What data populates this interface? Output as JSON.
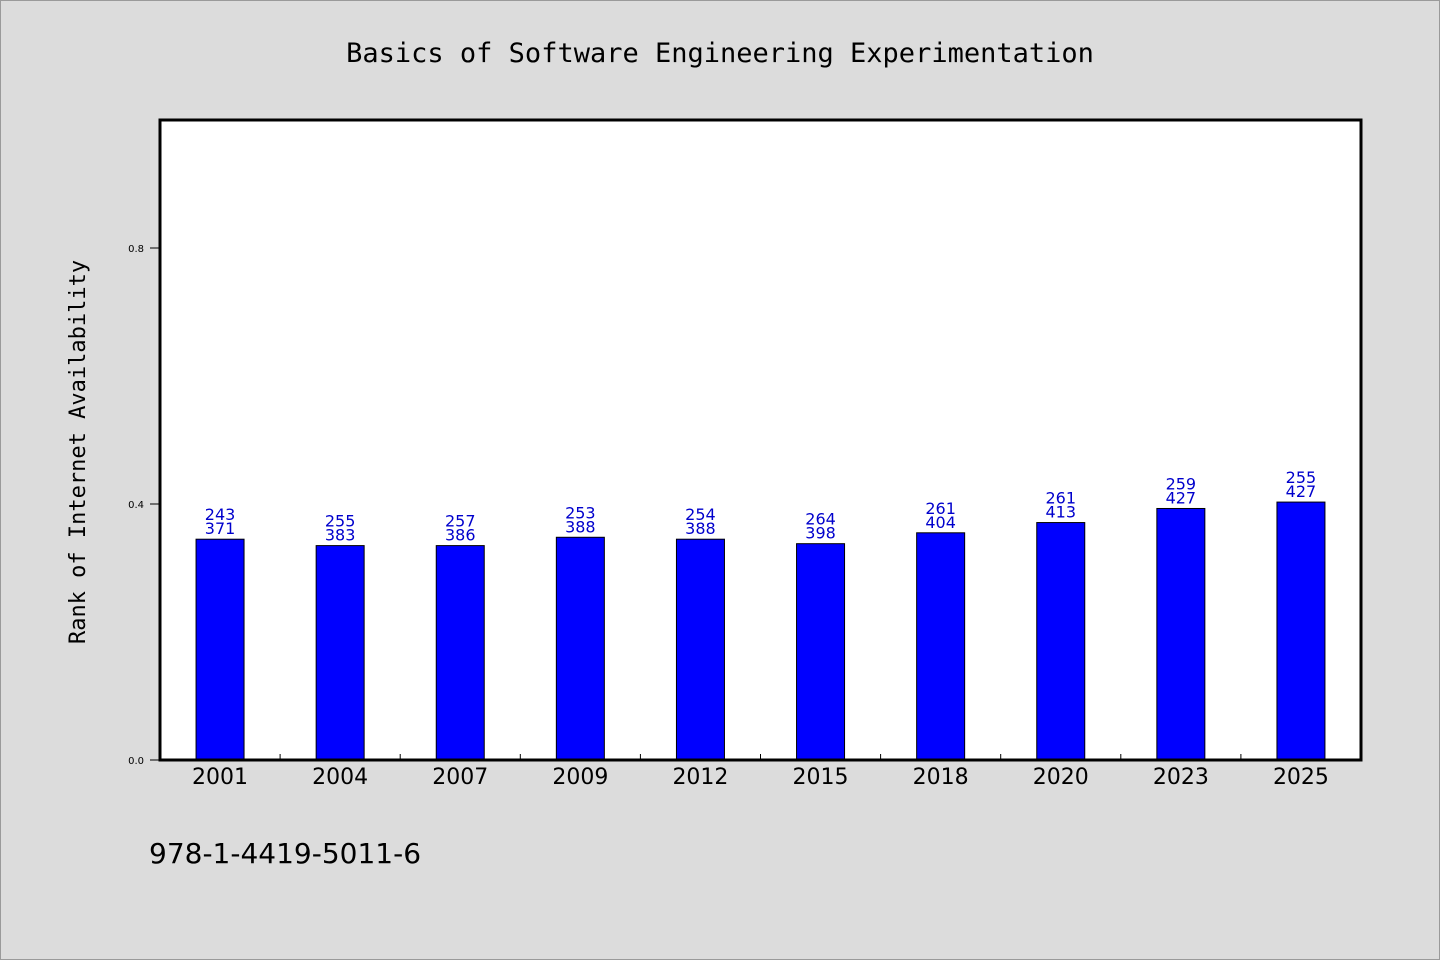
{
  "chart_data": {
    "type": "bar",
    "title": "Basics of Software Engineering Experimentation",
    "xlabel": "",
    "ylabel": "Rank of Internet Availability",
    "footer_text": "978-1-4419-5011-6",
    "categories": [
      "2001",
      "2004",
      "2007",
      "2009",
      "2012",
      "2015",
      "2018",
      "2020",
      "2023",
      "2025"
    ],
    "values": [
      0.345,
      0.335,
      0.335,
      0.348,
      0.345,
      0.338,
      0.355,
      0.371,
      0.393,
      0.403
    ],
    "label_top": [
      "243",
      "255",
      "257",
      "253",
      "254",
      "264",
      "261",
      "261",
      "259",
      "255"
    ],
    "label_bottom": [
      "371",
      "383",
      "386",
      "388",
      "388",
      "398",
      "404",
      "413",
      "427",
      "427"
    ],
    "yticks": [
      "0.0",
      "0.4",
      "0.8"
    ],
    "ylim": [
      0,
      1.0
    ],
    "grid": false,
    "colors": {
      "bar": "#0000ff",
      "bar_edge": "#000000",
      "data_label": "#0000cc",
      "text": "#000000",
      "plot_background": "#ffffff",
      "figure_background": "#dcdcdc"
    }
  }
}
